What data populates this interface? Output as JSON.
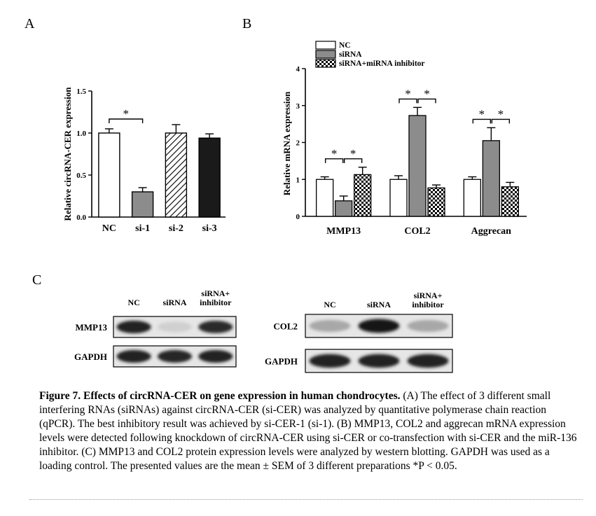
{
  "figure": {
    "caption": {
      "title": "Figure 7.  Effects of circRNA-CER on gene expression in human chondrocytes.",
      "body": " (A) The effect of 3 different small interfering RNAs (siRNAs) against circRNA-CER (si-CER) was analyzed by quantitative polymerase chain reaction (qPCR). The best inhibitory result was achieved by si-CER-1 (si-1). (B) MMP13, COL2 and aggrecan mRNA expression levels were detected following knockdown of circRNA-CER using si-CER or co-transfection with si-CER and the miR-136 inhibitor. (C) MMP13 and COL2 protein expression levels were analyzed by western blotting. GAPDH was used as a loading control. The presented values are the mean ± SEM of 3 different preparations *P < 0.05."
    },
    "panelA": {
      "letter": "A"
    },
    "panelB": {
      "letter": "B"
    },
    "panelC": {
      "letter": "C",
      "blot1": {
        "lanes": [
          "NC",
          "siRNA",
          "siRNA+\ninhibitor"
        ],
        "rows": [
          {
            "label": "MMP13",
            "intensity": [
              0.9,
              0.12,
              0.85
            ]
          },
          {
            "label": "GAPDH",
            "intensity": [
              0.9,
              0.88,
              0.9
            ]
          }
        ]
      },
      "blot2": {
        "lanes": [
          "NC",
          "siRNA",
          "siRNA+\ninhibitor"
        ],
        "rows": [
          {
            "label": "COL2",
            "intensity": [
              0.3,
              0.95,
              0.3
            ]
          },
          {
            "label": "GAPDH",
            "intensity": [
              0.9,
              0.9,
              0.9
            ]
          }
        ]
      }
    }
  },
  "chart_data": [
    {
      "type": "bar",
      "title": "",
      "xlabel": "",
      "ylabel": "Relative circRNA-CER expression",
      "ylim": [
        0,
        1.5
      ],
      "yticks": [
        "0.0",
        "0.5",
        "1.0",
        "1.5"
      ],
      "categories": [
        "NC",
        "si-1",
        "si-2",
        "si-3"
      ],
      "values": [
        1.0,
        0.3,
        1.0,
        0.94
      ],
      "errors": [
        0.05,
        0.05,
        0.1,
        0.05
      ],
      "styles": [
        "white",
        "gray",
        "hatched",
        "black"
      ],
      "significance": [
        {
          "from": 0,
          "to": 1,
          "label": "*"
        }
      ],
      "grid": false
    },
    {
      "type": "bar",
      "title": "",
      "xlabel": "",
      "ylabel": "Relative mRNA expression",
      "ylim": [
        0,
        4
      ],
      "yticks": [
        "0",
        "1",
        "2",
        "3",
        "4"
      ],
      "categories": [
        "MMP13",
        "COL2",
        "Aggrecan"
      ],
      "series": [
        {
          "name": "NC",
          "style": "white",
          "values": [
            1.0,
            1.0,
            1.0
          ],
          "errors": [
            0.07,
            0.1,
            0.07
          ]
        },
        {
          "name": "siRNA",
          "style": "gray",
          "values": [
            0.42,
            2.73,
            2.05
          ],
          "errors": [
            0.13,
            0.22,
            0.35
          ]
        },
        {
          "name": "siRNA+miRNA inhibitor",
          "style": "checker",
          "values": [
            1.13,
            0.77,
            0.8
          ],
          "errors": [
            0.2,
            0.08,
            0.12
          ]
        }
      ],
      "significance": [
        {
          "category": 0,
          "from": 0,
          "to": 1,
          "label": "*"
        },
        {
          "category": 0,
          "from": 1,
          "to": 2,
          "label": "*"
        },
        {
          "category": 1,
          "from": 0,
          "to": 1,
          "label": "*"
        },
        {
          "category": 1,
          "from": 1,
          "to": 2,
          "label": "*"
        },
        {
          "category": 2,
          "from": 0,
          "to": 1,
          "label": "*"
        },
        {
          "category": 2,
          "from": 1,
          "to": 2,
          "label": "*"
        }
      ],
      "legend_position": "top-left",
      "grid": false
    }
  ]
}
